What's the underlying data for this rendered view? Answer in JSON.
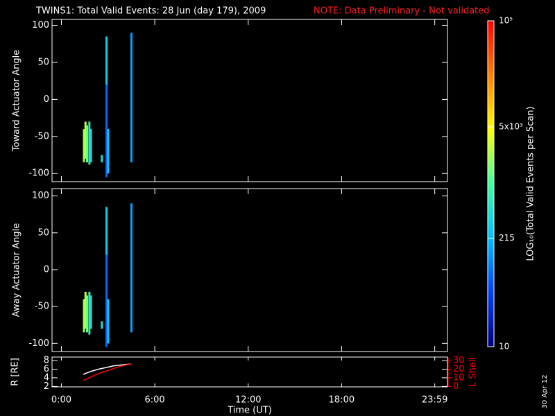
{
  "title": "TWINS1: Total Valid Events: 28 Jun (day 179), 2009",
  "note": "NOTE: Data Preliminary - Not validated",
  "stamp": "30 Apr 12",
  "colorbar": {
    "label": "LOG₁₀(Total Valid Events per Scan)",
    "log": true,
    "lim": [
      10,
      100000
    ],
    "ticks": [
      10,
      215,
      {
        "value": 5000,
        "label": "5x10³"
      },
      {
        "value": 100000,
        "label": "10⁵"
      }
    ],
    "colors": [
      "#000080",
      "#0040ff",
      "#00c0ff",
      "#40ffa0",
      "#ffff00",
      "#ff8000",
      "#ff0000"
    ]
  },
  "chart_data": [
    {
      "type": "spectrogram",
      "ylabel": "Toward Actuator Angle",
      "xlim": [
        -0.6,
        24.8
      ],
      "xticks": [
        {
          "value": 0,
          "label": "0:00"
        },
        {
          "value": 6,
          "label": "6:00"
        },
        {
          "value": 12,
          "label": "12:00"
        },
        {
          "value": 18,
          "label": "18:00"
        },
        {
          "value": 23.983,
          "label": "23:59"
        }
      ],
      "ylim": [
        -111,
        108
      ],
      "yticks": [
        -100,
        -50,
        0,
        50,
        100
      ],
      "cells": {
        "x": [
          1.45,
          1.55,
          1.65,
          1.8,
          1.9,
          2.6,
          2.9,
          2.9,
          3.0,
          4.5
        ],
        "y_low": [
          -85,
          -80,
          -85,
          -88,
          -85,
          -85,
          20,
          -105,
          -100,
          -85
        ],
        "y_high": [
          -40,
          -30,
          -35,
          -30,
          -40,
          -75,
          85,
          20,
          -40,
          90
        ],
        "values": [
          2000,
          3000,
          1500,
          600,
          400,
          400,
          300,
          80,
          250,
          150
        ]
      }
    },
    {
      "type": "spectrogram",
      "ylabel": "Away Actuator Angle",
      "xlim": [
        -0.6,
        24.8
      ],
      "xticks": [
        {
          "value": 0,
          "label": "0:00"
        },
        {
          "value": 6,
          "label": "6:00"
        },
        {
          "value": 12,
          "label": "12:00"
        },
        {
          "value": 18,
          "label": "18:00"
        },
        {
          "value": 23.983,
          "label": "23:59"
        }
      ],
      "ylim": [
        -111,
        110
      ],
      "yticks": [
        -100,
        -50,
        0,
        50,
        100
      ],
      "cells": {
        "x": [
          1.45,
          1.55,
          1.65,
          1.8,
          1.9,
          2.6,
          2.9,
          2.9,
          3.0,
          4.5
        ],
        "y_low": [
          -85,
          -80,
          -85,
          -88,
          -80,
          -80,
          20,
          -105,
          -100,
          -85
        ],
        "y_high": [
          -40,
          -30,
          -35,
          -30,
          -35,
          -70,
          85,
          20,
          -40,
          90
        ],
        "values": [
          2000,
          3000,
          1500,
          700,
          450,
          400,
          300,
          80,
          250,
          150
        ]
      }
    },
    {
      "type": "line",
      "ylabel": "R [RE]",
      "xlabel": "Time (UT)",
      "y2label": "L Shell",
      "xlim": [
        -0.6,
        24.8
      ],
      "xticks": [
        {
          "value": 0,
          "label": "0:00"
        },
        {
          "value": 6,
          "label": "6:00"
        },
        {
          "value": 12,
          "label": "12:00"
        },
        {
          "value": 18,
          "label": "18:00"
        },
        {
          "value": 23.983,
          "label": "23:59"
        }
      ],
      "ylim": [
        1.9,
        8.8
      ],
      "yticks": [
        2,
        4,
        6,
        8
      ],
      "y2lim": [
        -0.5,
        34
      ],
      "y2ticks": [
        0,
        10,
        20,
        30
      ],
      "y2color": "#ff0000",
      "x": [
        1.4,
        1.9,
        2.4,
        2.9,
        3.4,
        3.9,
        4.5
      ],
      "series": [
        {
          "color": "#ffffff",
          "values": [
            4.8,
            5.5,
            6.0,
            6.4,
            6.8,
            7.0,
            7.2
          ]
        },
        {
          "color": "#ff0000",
          "axis": "y2",
          "values": [
            7,
            11,
            15,
            18,
            21,
            24,
            26
          ]
        }
      ]
    }
  ]
}
